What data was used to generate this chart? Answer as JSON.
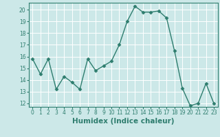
{
  "x": [
    0,
    1,
    2,
    3,
    4,
    5,
    6,
    7,
    8,
    9,
    10,
    11,
    12,
    13,
    14,
    15,
    16,
    17,
    18,
    19,
    20,
    21,
    22,
    23
  ],
  "y": [
    15.8,
    14.5,
    15.8,
    13.2,
    14.3,
    13.8,
    13.2,
    15.8,
    14.8,
    15.2,
    15.6,
    17.0,
    19.0,
    20.3,
    19.8,
    19.8,
    19.9,
    19.3,
    16.5,
    13.3,
    11.8,
    12.0,
    13.7,
    12.0
  ],
  "line_color": "#2e7d6e",
  "marker": "D",
  "markersize": 2.5,
  "linewidth": 1.0,
  "bg_color": "#cce8e8",
  "grid_color": "#ffffff",
  "xlabel": "Humidex (Indice chaleur)",
  "ylim": [
    11.7,
    20.6
  ],
  "xlim": [
    -0.5,
    23.5
  ],
  "yticks": [
    12,
    13,
    14,
    15,
    16,
    17,
    18,
    19,
    20
  ],
  "xticks": [
    0,
    1,
    2,
    3,
    4,
    5,
    6,
    7,
    8,
    9,
    10,
    11,
    12,
    13,
    14,
    15,
    16,
    17,
    18,
    19,
    20,
    21,
    22,
    23
  ],
  "tick_label_fontsize": 5.5,
  "xlabel_fontsize": 7.5,
  "xlabel_fontweight": "bold"
}
